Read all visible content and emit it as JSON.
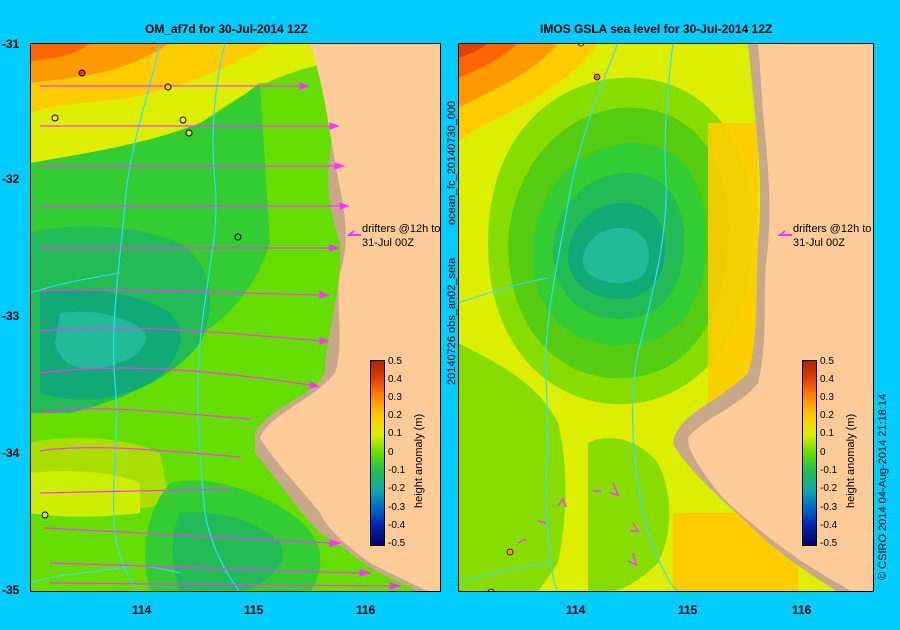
{
  "left_panel": {
    "title": "OM_af7d for 30-Jul-2014 12Z",
    "drifters_line1": "drifters @12h to",
    "drifters_line2": "31-Jul 00Z",
    "colorbar_label": "height anomaly (m)"
  },
  "right_panel": {
    "title": "IMOS GSLA sea level  for 30-Jul-2014 12Z",
    "drifters_line1": "drifters @12h to",
    "drifters_line2": "31-Jul 00Z",
    "colorbar_label": "height anomaly (m)",
    "side_text_top": "ocean_fc_20140730_000",
    "side_text_bottom": "20140726 obs_an02_seta"
  },
  "footer_text": "© CSIRO 2014   04-Aug-2014 21:18:14",
  "y_ticks": [
    "-31",
    "-32",
    "-33",
    "-34",
    "-35"
  ],
  "x_ticks": [
    "114",
    "115",
    "116"
  ],
  "colorbar_ticks": [
    "0.5",
    "0.4",
    "0.3",
    "0.2",
    "0.1",
    "0",
    "-0.1",
    "-0.2",
    "-0.3",
    "-0.4",
    "-0.5"
  ],
  "colors": {
    "background": "#00ccff",
    "land": "#ffcc99",
    "shelf": "#c8a88a",
    "arrows": "#ff33ff",
    "isobath": "#33ddff"
  }
}
